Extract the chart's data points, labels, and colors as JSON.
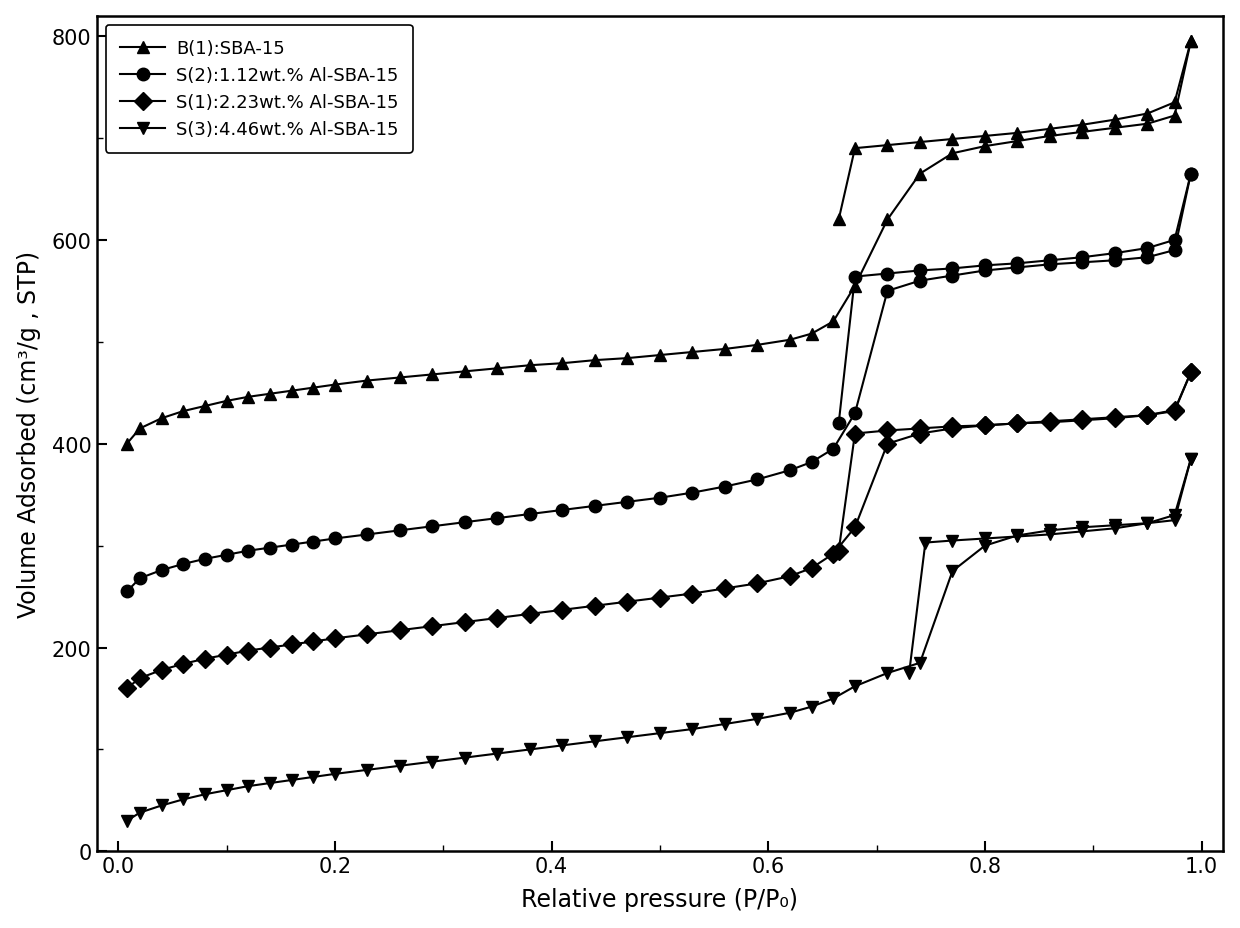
{
  "title": "",
  "xlabel": "Relative pressure (P/P₀)",
  "ylabel": "Volume Adsorbed (cm³/g , STP)",
  "xlim": [
    -0.02,
    1.02
  ],
  "ylim": [
    0,
    820
  ],
  "yticks": [
    0,
    200,
    400,
    600,
    800
  ],
  "xticks": [
    0.0,
    0.2,
    0.4,
    0.6,
    0.8,
    1.0
  ],
  "legend_labels": [
    "B(1):SBA-15",
    "S(2):1.12wt.% Al-SBA-15",
    "S(1):2.23wt.% Al-SBA-15",
    "S(3):4.46wt.% Al-SBA-15"
  ],
  "markers": [
    "^",
    "o",
    "D",
    "v"
  ],
  "markersize": 9,
  "linewidth": 1.5,
  "line_color": "#000000",
  "background_color": "#ffffff",
  "series": {
    "B1_ads": {
      "x": [
        0.008,
        0.02,
        0.04,
        0.06,
        0.08,
        0.1,
        0.12,
        0.14,
        0.16,
        0.18,
        0.2,
        0.23,
        0.26,
        0.29,
        0.32,
        0.35,
        0.38,
        0.41,
        0.44,
        0.47,
        0.5,
        0.53,
        0.56,
        0.59,
        0.62,
        0.64,
        0.66,
        0.68,
        0.71,
        0.74,
        0.77,
        0.8,
        0.83,
        0.86,
        0.89,
        0.92,
        0.95,
        0.975,
        0.99
      ],
      "y": [
        400,
        415,
        425,
        432,
        437,
        442,
        446,
        449,
        452,
        455,
        458,
        462,
        465,
        468,
        471,
        474,
        477,
        479,
        482,
        484,
        487,
        490,
        493,
        497,
        502,
        508,
        520,
        555,
        620,
        665,
        685,
        692,
        697,
        702,
        706,
        710,
        714,
        722,
        795
      ]
    },
    "B1_des": {
      "x": [
        0.99,
        0.975,
        0.95,
        0.92,
        0.89,
        0.86,
        0.83,
        0.8,
        0.77,
        0.74,
        0.71,
        0.68,
        0.665
      ],
      "y": [
        795,
        735,
        724,
        718,
        713,
        709,
        705,
        702,
        699,
        696,
        693,
        690,
        620
      ]
    },
    "S2_ads": {
      "x": [
        0.008,
        0.02,
        0.04,
        0.06,
        0.08,
        0.1,
        0.12,
        0.14,
        0.16,
        0.18,
        0.2,
        0.23,
        0.26,
        0.29,
        0.32,
        0.35,
        0.38,
        0.41,
        0.44,
        0.47,
        0.5,
        0.53,
        0.56,
        0.59,
        0.62,
        0.64,
        0.66,
        0.68,
        0.71,
        0.74,
        0.77,
        0.8,
        0.83,
        0.86,
        0.89,
        0.92,
        0.95,
        0.975,
        0.99
      ],
      "y": [
        255,
        268,
        276,
        282,
        287,
        291,
        295,
        298,
        301,
        304,
        307,
        311,
        315,
        319,
        323,
        327,
        331,
        335,
        339,
        343,
        347,
        352,
        358,
        365,
        374,
        382,
        395,
        430,
        550,
        560,
        565,
        570,
        573,
        576,
        578,
        580,
        583,
        590,
        665
      ]
    },
    "S2_des": {
      "x": [
        0.99,
        0.975,
        0.95,
        0.92,
        0.89,
        0.86,
        0.83,
        0.8,
        0.77,
        0.74,
        0.71,
        0.68,
        0.665
      ],
      "y": [
        665,
        600,
        592,
        587,
        583,
        580,
        577,
        575,
        572,
        570,
        567,
        564,
        420
      ]
    },
    "S1_ads": {
      "x": [
        0.008,
        0.02,
        0.04,
        0.06,
        0.08,
        0.1,
        0.12,
        0.14,
        0.16,
        0.18,
        0.2,
        0.23,
        0.26,
        0.29,
        0.32,
        0.35,
        0.38,
        0.41,
        0.44,
        0.47,
        0.5,
        0.53,
        0.56,
        0.59,
        0.62,
        0.64,
        0.66,
        0.68,
        0.71,
        0.74,
        0.77,
        0.8,
        0.83,
        0.86,
        0.89,
        0.92,
        0.95,
        0.975,
        0.99
      ],
      "y": [
        160,
        170,
        178,
        184,
        189,
        193,
        197,
        200,
        203,
        206,
        209,
        213,
        217,
        221,
        225,
        229,
        233,
        237,
        241,
        245,
        249,
        253,
        258,
        263,
        270,
        278,
        292,
        318,
        400,
        410,
        415,
        418,
        420,
        422,
        424,
        426,
        428,
        432,
        470
      ]
    },
    "S1_des": {
      "x": [
        0.99,
        0.975,
        0.95,
        0.92,
        0.89,
        0.86,
        0.83,
        0.8,
        0.77,
        0.74,
        0.71,
        0.68,
        0.665
      ],
      "y": [
        470,
        433,
        428,
        425,
        423,
        421,
        420,
        418,
        417,
        415,
        413,
        410,
        295
      ]
    },
    "S3_ads": {
      "x": [
        0.008,
        0.02,
        0.04,
        0.06,
        0.08,
        0.1,
        0.12,
        0.14,
        0.16,
        0.18,
        0.2,
        0.23,
        0.26,
        0.29,
        0.32,
        0.35,
        0.38,
        0.41,
        0.44,
        0.47,
        0.5,
        0.53,
        0.56,
        0.59,
        0.62,
        0.64,
        0.66,
        0.68,
        0.71,
        0.74,
        0.77,
        0.8,
        0.83,
        0.86,
        0.89,
        0.92,
        0.95,
        0.975,
        0.99
      ],
      "y": [
        30,
        38,
        45,
        51,
        56,
        60,
        64,
        67,
        70,
        73,
        76,
        80,
        84,
        88,
        92,
        96,
        100,
        104,
        108,
        112,
        116,
        120,
        125,
        130,
        136,
        142,
        150,
        162,
        175,
        185,
        275,
        300,
        310,
        315,
        318,
        320,
        322,
        325,
        385
      ]
    },
    "S3_des": {
      "x": [
        0.99,
        0.975,
        0.95,
        0.92,
        0.89,
        0.86,
        0.83,
        0.8,
        0.77,
        0.745,
        0.73
      ],
      "y": [
        385,
        330,
        322,
        317,
        314,
        311,
        309,
        307,
        305,
        303,
        175
      ]
    }
  }
}
